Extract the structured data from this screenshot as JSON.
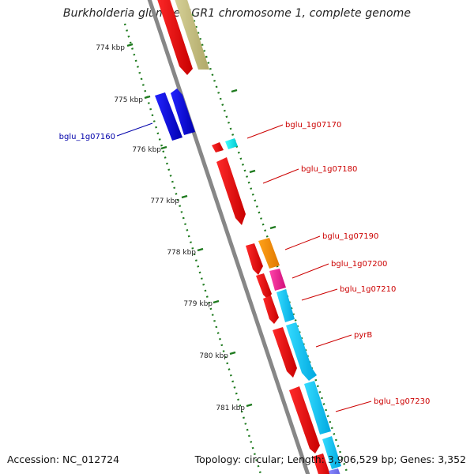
{
  "title": "Burkholderia glumae BGR1 chromosome 1, complete genome",
  "footer": {
    "accession": "Accession: NC_012724",
    "topology": "Topology: circular; Length: 3,906,529 bp; Genes: 3,352"
  },
  "colors": {
    "backbone": "#808080",
    "tick": "#1e7a1e",
    "label_red": "#cc0000",
    "label_blue": "#0000aa"
  },
  "axis": {
    "unit": "kbp",
    "ticks": [
      "774 kbp",
      "775 kbp",
      "776 kbp",
      "777 kbp",
      "778 kbp",
      "779 kbp",
      "780 kbp",
      "781 kbp"
    ]
  },
  "gene_labels": [
    {
      "text": "bglu_1g07160",
      "color": "#0000aa"
    },
    {
      "text": "bglu_1g07170",
      "color": "#cc0000"
    },
    {
      "text": "bglu_1g07180",
      "color": "#cc0000"
    },
    {
      "text": "bglu_1g07190",
      "color": "#cc0000"
    },
    {
      "text": "bglu_1g07200",
      "color": "#cc0000"
    },
    {
      "text": "bglu_1g07210",
      "color": "#cc0000"
    },
    {
      "text": "pyrB",
      "color": "#cc0000"
    },
    {
      "text": "bglu_1g07230",
      "color": "#cc0000"
    }
  ]
}
